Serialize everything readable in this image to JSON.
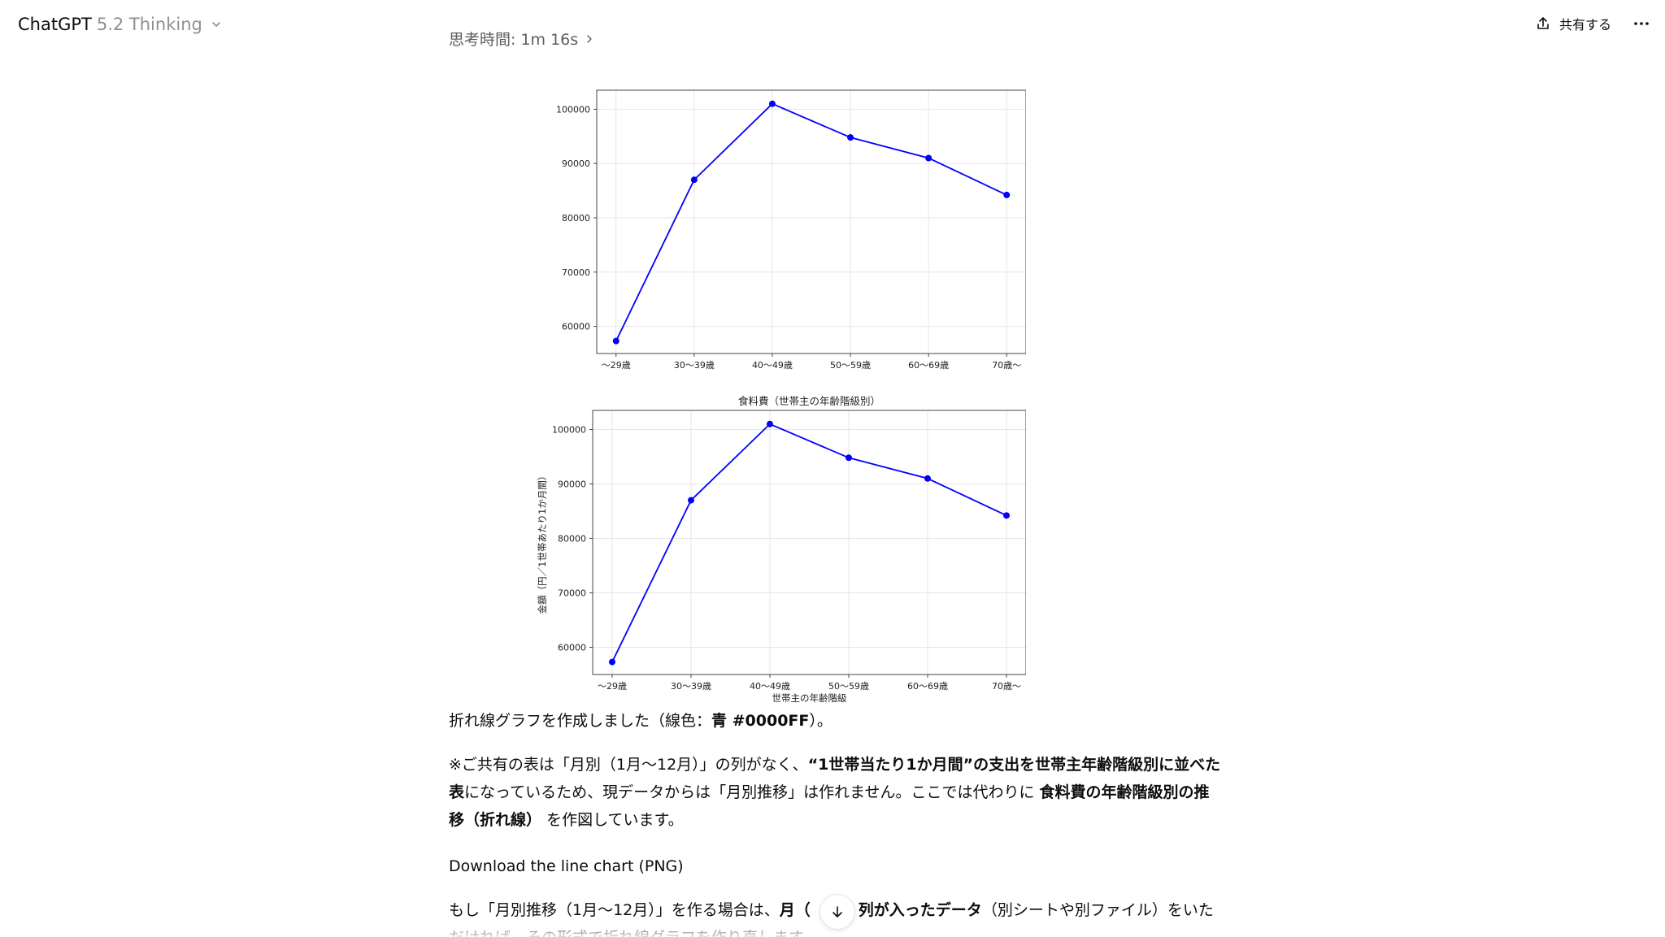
{
  "header": {
    "model_name": "ChatGPT",
    "model_version": "5.2 Thinking",
    "share_label": "共有する"
  },
  "thinking": {
    "label": "思考時間: 1m 16s"
  },
  "chart_data": [
    {
      "type": "line",
      "title": "",
      "xlabel": "",
      "ylabel": "",
      "categories": [
        "～29歳",
        "30～39歳",
        "40～49歳",
        "50～59歳",
        "60～69歳",
        "70歳～"
      ],
      "series": [
        {
          "values": [
            57300,
            87000,
            101000,
            94800,
            91000,
            84200
          ]
        }
      ],
      "ylim": [
        55000,
        103500
      ],
      "yticks": [
        60000,
        70000,
        80000,
        90000,
        100000
      ],
      "grid": true,
      "line_color": "#0000FF",
      "note": ""
    },
    {
      "type": "line",
      "title": "食料費（世帯主の年齢階級別）",
      "xlabel": "世帯主の年齢階級",
      "ylabel": "金額（円／1世帯あたり1か月間）",
      "categories": [
        "～29歳",
        "30～39歳",
        "40～49歳",
        "50～59歳",
        "60～69歳",
        "70歳～"
      ],
      "series": [
        {
          "values": [
            57300,
            87000,
            101000,
            94800,
            91000,
            84200
          ]
        }
      ],
      "ylim": [
        55000,
        103500
      ],
      "yticks": [
        60000,
        70000,
        80000,
        90000,
        100000
      ],
      "grid": true,
      "line_color": "#0000FF"
    }
  ],
  "message": {
    "p1_a": "折れ線グラフを作成しました（線色：",
    "p1_b": "青 #0000FF",
    "p1_c": "）。",
    "p2_a": "※ご共有の表は「月別（1月～12月）」の列がなく、",
    "p2_b": "“1世帯当たり1か月間”の支出を世帯主年齢階級別に並べた表",
    "p2_c": "になっているため、現データからは「月別推移」は作れません。ここでは代わりに",
    "p2_d": "食料費の年齢階級別の推移（折れ線）",
    "p2_e": "を作図しています。",
    "download_label": "Download the line chart (PNG)",
    "p3_a": "もし「月別推移（1月～12月）」を作る場合は、",
    "p3_b": "月（",
    "p3_c": "）列が入ったデータ",
    "p3_d": "（別シートや別ファイル）をいただければ、その形式で折れ線グラフを作り直します。"
  }
}
